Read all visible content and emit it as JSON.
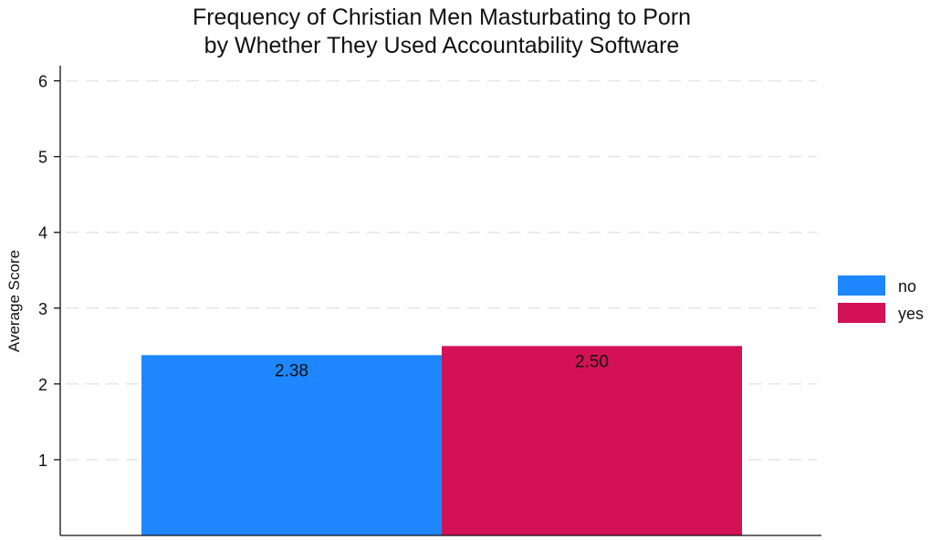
{
  "chart_data": {
    "type": "bar",
    "title_lines": [
      "Frequency of Christian Men Masturbating to Porn",
      "by Whether They Used Accountability Software"
    ],
    "xlabel": "",
    "ylabel": "Average Score",
    "ylim": [
      0,
      6.2
    ],
    "yticks": [
      1,
      2,
      3,
      4,
      5,
      6
    ],
    "grid": true,
    "legend_position": "right",
    "categories": [
      "no",
      "yes"
    ],
    "values": [
      2.38,
      2.5
    ],
    "data_labels": [
      "2.38",
      "2.50"
    ],
    "colors": [
      "#1e87ff",
      "#d41154"
    ],
    "legend": [
      {
        "label": "no",
        "color": "#1e87ff"
      },
      {
        "label": "yes",
        "color": "#d41154"
      }
    ]
  }
}
